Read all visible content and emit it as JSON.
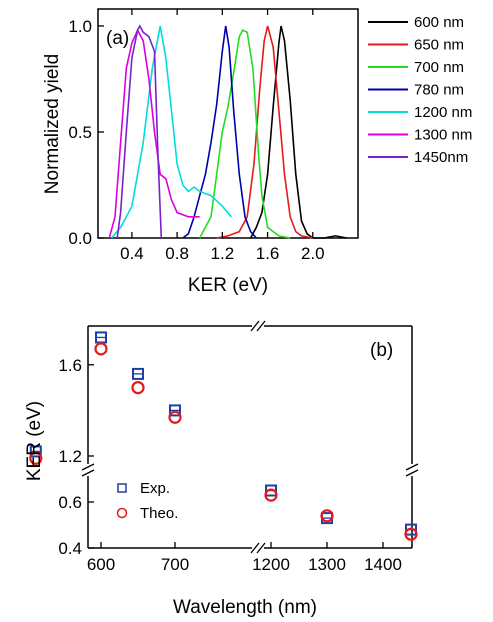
{
  "chart_data": [
    {
      "panel": "(a)",
      "type": "line",
      "xlabel": "KER (eV)",
      "ylabel": "Normalized yield",
      "xlim": [
        0.1,
        2.4
      ],
      "ylim": [
        0,
        1.08
      ],
      "x_ticks": [
        0.4,
        0.8,
        1.2,
        1.6,
        2.0
      ],
      "x_tick_labels": [
        "0.4",
        "0.8",
        "1.2",
        "1.6",
        "2.0"
      ],
      "y_ticks": [
        0.0,
        0.5,
        1.0
      ],
      "y_tick_labels": [
        "0.0",
        "0.5",
        "1.0"
      ],
      "legend_position": "outside-right",
      "series": [
        {
          "name": "600 nm",
          "color": "#000000",
          "x": [
            1.45,
            1.5,
            1.55,
            1.6,
            1.65,
            1.7,
            1.72,
            1.75,
            1.8,
            1.85,
            1.9,
            1.95,
            2.0,
            2.1,
            2.2,
            2.3
          ],
          "y": [
            0.0,
            0.05,
            0.12,
            0.3,
            0.62,
            0.92,
            1.0,
            0.93,
            0.65,
            0.3,
            0.08,
            0.02,
            0.0,
            0.0,
            0.01,
            0.0
          ]
        },
        {
          "name": "650 nm",
          "color": "#e41a1c",
          "x": [
            1.15,
            1.25,
            1.35,
            1.42,
            1.48,
            1.53,
            1.57,
            1.6,
            1.65,
            1.7,
            1.75,
            1.8,
            1.85,
            1.9,
            2.0
          ],
          "y": [
            0.0,
            0.01,
            0.03,
            0.1,
            0.35,
            0.7,
            0.93,
            1.0,
            0.9,
            0.6,
            0.3,
            0.1,
            0.03,
            0.01,
            0.0
          ]
        },
        {
          "name": "700 nm",
          "color": "#22dd22",
          "x": [
            1.0,
            1.1,
            1.15,
            1.2,
            1.25,
            1.3,
            1.35,
            1.38,
            1.42,
            1.47,
            1.52,
            1.55,
            1.6,
            1.7,
            1.8
          ],
          "y": [
            0.0,
            0.1,
            0.3,
            0.5,
            0.62,
            0.78,
            0.95,
            0.98,
            0.97,
            0.8,
            0.4,
            0.2,
            0.05,
            0.01,
            0.0
          ]
        },
        {
          "name": "780 nm",
          "color": "#0000aa",
          "x": [
            0.85,
            0.9,
            0.95,
            1.0,
            1.05,
            1.1,
            1.15,
            1.2,
            1.23,
            1.26,
            1.3,
            1.35,
            1.4,
            1.45,
            1.5
          ],
          "y": [
            0.0,
            0.02,
            0.1,
            0.2,
            0.3,
            0.45,
            0.63,
            0.88,
            1.0,
            0.9,
            0.6,
            0.3,
            0.1,
            0.03,
            0.0
          ]
        },
        {
          "name": "1200 nm",
          "color": "#00dddd",
          "x": [
            0.22,
            0.3,
            0.4,
            0.5,
            0.58,
            0.65,
            0.7,
            0.75,
            0.8,
            0.85,
            0.9,
            0.95,
            1.0,
            1.1,
            1.2,
            1.28
          ],
          "y": [
            0.0,
            0.05,
            0.15,
            0.45,
            0.8,
            1.0,
            0.85,
            0.6,
            0.35,
            0.25,
            0.22,
            0.24,
            0.22,
            0.2,
            0.15,
            0.1
          ]
        },
        {
          "name": "1300 nm",
          "color": "#dd00dd",
          "x": [
            0.2,
            0.25,
            0.3,
            0.35,
            0.4,
            0.45,
            0.5,
            0.55,
            0.6,
            0.65,
            0.7,
            0.75,
            0.8,
            0.9,
            1.0
          ],
          "y": [
            0.0,
            0.1,
            0.45,
            0.8,
            0.92,
            0.98,
            0.93,
            0.75,
            0.5,
            0.3,
            0.28,
            0.18,
            0.12,
            0.1,
            0.1
          ]
        },
        {
          "name": "1450nm",
          "color": "#7722cc",
          "x": [
            0.27,
            0.3,
            0.35,
            0.4,
            0.45,
            0.47,
            0.5,
            0.55,
            0.6,
            0.63,
            0.66
          ],
          "y": [
            0.0,
            0.12,
            0.5,
            0.85,
            0.98,
            1.0,
            0.97,
            0.95,
            0.88,
            0.4,
            0.0
          ]
        }
      ]
    },
    {
      "panel": "(b)",
      "type": "scatter",
      "xlabel": "Wavelength (nm)",
      "ylabel": "KER (eV)",
      "x_break": [
        700,
        1150
      ],
      "y_break": [
        0.7,
        1.1
      ],
      "x_tick_labels": [
        "600",
        "700",
        "1200",
        "1300",
        "1400"
      ],
      "y_tick_labels": [
        "0.4",
        "0.6",
        "1.2",
        "1.6"
      ],
      "legend_position": "bottom-left",
      "series": [
        {
          "name": "Exp.",
          "marker": "square",
          "color": "#1f3fa6",
          "x": [
            600,
            650,
            700,
            780,
            1200,
            1300,
            1450
          ],
          "y": [
            1.72,
            1.56,
            1.4,
            1.22,
            0.65,
            0.53,
            0.48
          ]
        },
        {
          "name": "Theo.",
          "marker": "circle",
          "color": "#e41a1c",
          "x": [
            600,
            650,
            700,
            780,
            1200,
            1300,
            1450
          ],
          "y": [
            1.67,
            1.5,
            1.37,
            1.19,
            0.63,
            0.54,
            0.46
          ]
        }
      ]
    }
  ]
}
